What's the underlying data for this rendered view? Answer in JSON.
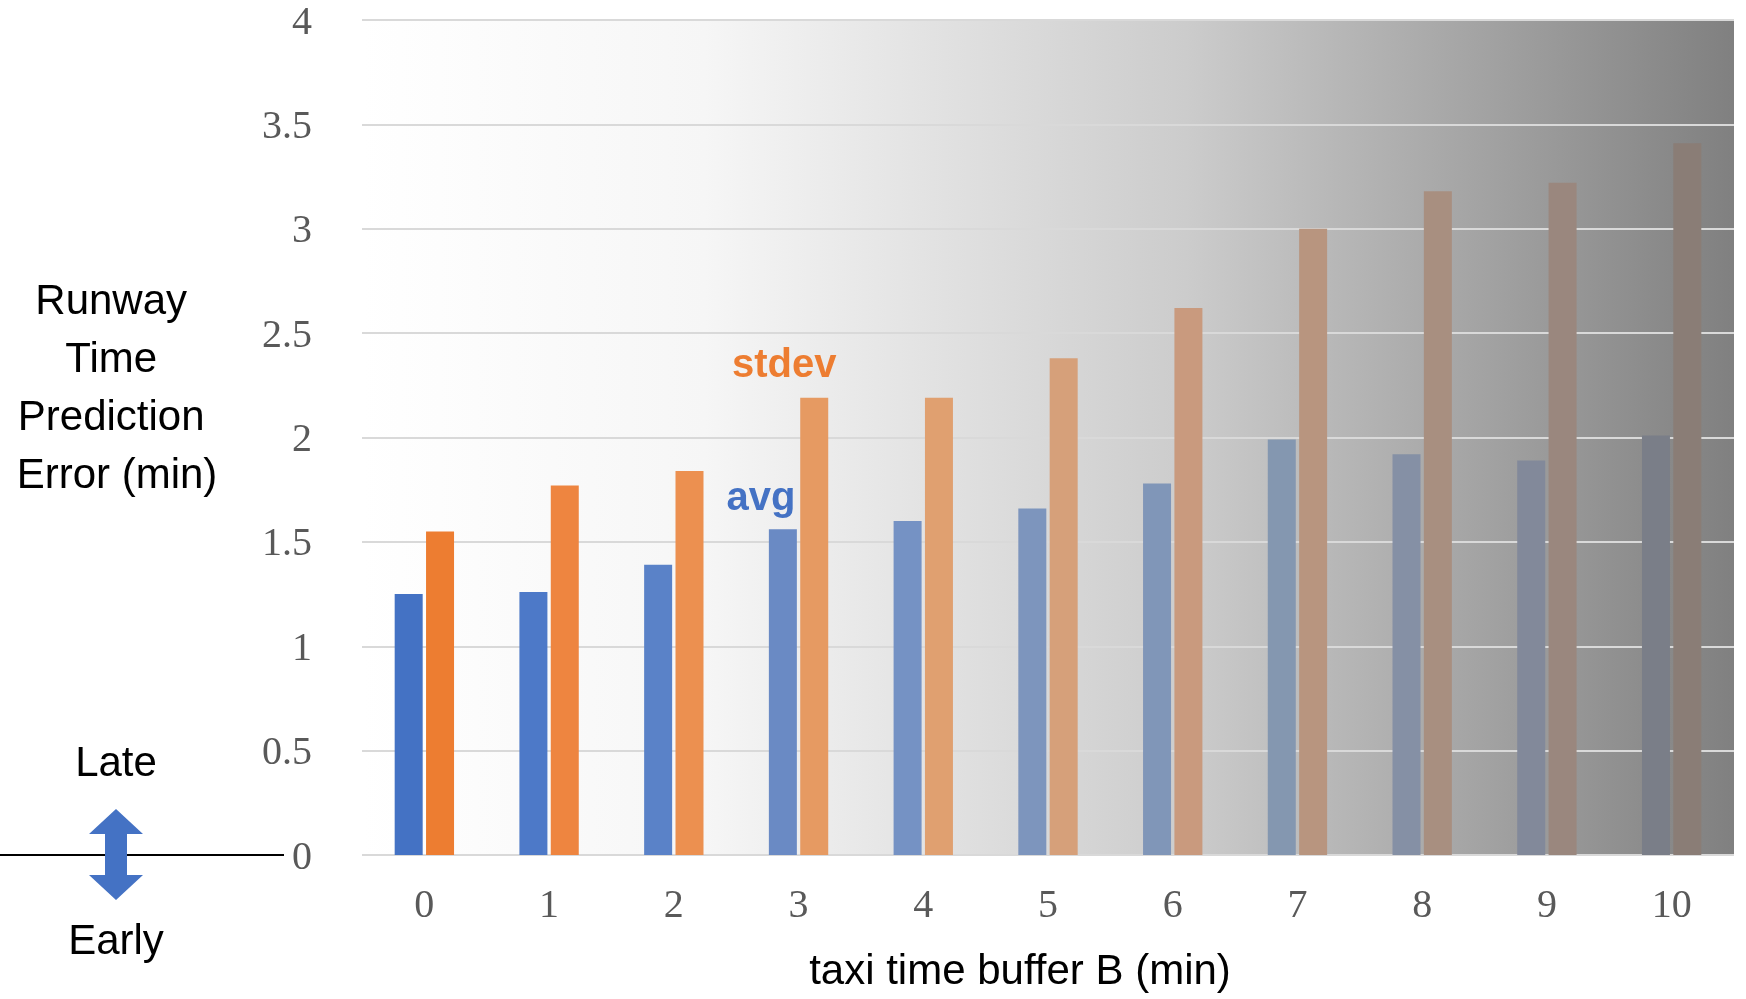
{
  "chart_data": {
    "type": "bar",
    "ylabel": "Runway Time Prediction Error (min)",
    "xlabel": "taxi time buffer B (min)",
    "categories": [
      "0",
      "1",
      "2",
      "3",
      "4",
      "5",
      "6",
      "7",
      "8",
      "9",
      "10"
    ],
    "series": [
      {
        "name": "avg",
        "color": "#4472c4",
        "colors": [
          "#4472c4",
          "#4d79c8",
          "#5a82c8",
          "#6a8ac4",
          "#7592c4",
          "#7d95bd",
          "#8096b8",
          "#8497b0",
          "#8590a5",
          "#82899a",
          "#7a7e88"
        ],
        "values": [
          1.25,
          1.26,
          1.39,
          1.56,
          1.6,
          1.66,
          1.78,
          1.99,
          1.92,
          1.89,
          2.01
        ]
      },
      {
        "name": "stdev",
        "color": "#ed7d31",
        "colors": [
          "#ed7d31",
          "#ee8540",
          "#ec9050",
          "#e69a62",
          "#e0a070",
          "#d6a07a",
          "#c99a7e",
          "#b8957f",
          "#a88f80",
          "#9a877e",
          "#8a7d76"
        ],
        "values": [
          1.55,
          1.77,
          1.84,
          2.19,
          2.19,
          2.38,
          2.62,
          3.0,
          3.18,
          3.22,
          3.41
        ]
      }
    ],
    "ylim": [
      0,
      4
    ],
    "yticks": [
      0,
      0.5,
      1,
      1.5,
      2,
      2.5,
      3,
      3.5,
      4
    ],
    "grid": "y",
    "legend": false,
    "annotations": [
      "Late",
      "Early"
    ]
  }
}
